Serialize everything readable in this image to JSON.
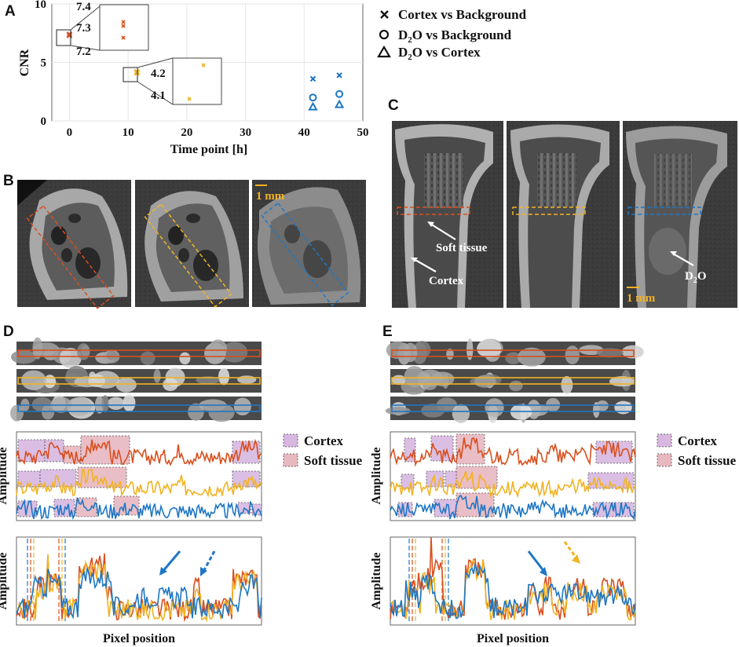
{
  "colors": {
    "orange": "#d94f1e",
    "yellow": "#f0b323",
    "blue": "#1f77c4",
    "cortex_fill": "#d8b8e0",
    "soft_fill": "#e8b8c0",
    "gray_bg": "#3a3a3a"
  },
  "panels": {
    "A": {
      "letter": "A",
      "xlabel": "Time point [h]",
      "ylabel": "CNR",
      "legend": {
        "cortex_bg": "Cortex vs Background",
        "d2o_bg_prefix": "D",
        "d2o_bg_sub": "2",
        "d2o_bg_suffix": "O vs Background",
        "d2o_cortex_prefix": "D",
        "d2o_cortex_sub": "2",
        "d2o_cortex_suffix": "O vs Cortex"
      },
      "inset1_ticks": [
        "7.4",
        "7.3",
        "7.2"
      ],
      "inset2_ticks": [
        "4.2",
        "4.1"
      ]
    },
    "B": {
      "letter": "B",
      "scale_label": "1 mm"
    },
    "C": {
      "letter": "C",
      "soft_tissue": "Soft tissue",
      "cortex": "Cortex",
      "d2o_prefix": "D",
      "d2o_sub": "2",
      "d2o_suffix": "O",
      "scale_label": "1 mm"
    },
    "D": {
      "letter": "D",
      "legend_cortex": "Cortex",
      "legend_soft": "Soft tissue",
      "ylabel_mid": "Amplitude",
      "ylabel_bot": "Amplitude",
      "xlabel": "Pixel position"
    },
    "E": {
      "letter": "E",
      "legend_cortex": "Cortex",
      "legend_soft": "Soft tissue",
      "ylabel_mid": "Amplitude",
      "ylabel_bot": "Amplitude",
      "xlabel": "Pixel position"
    }
  },
  "chart_data": [
    {
      "type": "scatter",
      "title": "",
      "xlabel": "Time point [h]",
      "ylabel": "CNR",
      "xlim": [
        -3,
        50
      ],
      "ylim": [
        0,
        10
      ],
      "xticks": [
        0,
        10,
        20,
        30,
        40,
        50
      ],
      "yticks": [
        0,
        5,
        10
      ],
      "series": [
        {
          "name": "Cortex vs Background",
          "marker": "x",
          "colors_by_point": [
            "orange",
            "orange",
            "yellow",
            "yellow",
            "blue",
            "blue"
          ],
          "x": [
            0,
            0,
            11.5,
            11.5,
            41.5,
            46
          ],
          "y": [
            7.3,
            7.4,
            4.1,
            4.2,
            3.6,
            3.9
          ]
        },
        {
          "name": "D2O vs Background",
          "marker": "o",
          "color": "blue",
          "x": [
            41.5,
            46
          ],
          "y": [
            2.0,
            2.3
          ]
        },
        {
          "name": "D2O vs Cortex",
          "marker": "triangle",
          "color": "blue",
          "x": [
            41.5,
            46
          ],
          "y": [
            1.2,
            1.4
          ]
        }
      ]
    }
  ]
}
